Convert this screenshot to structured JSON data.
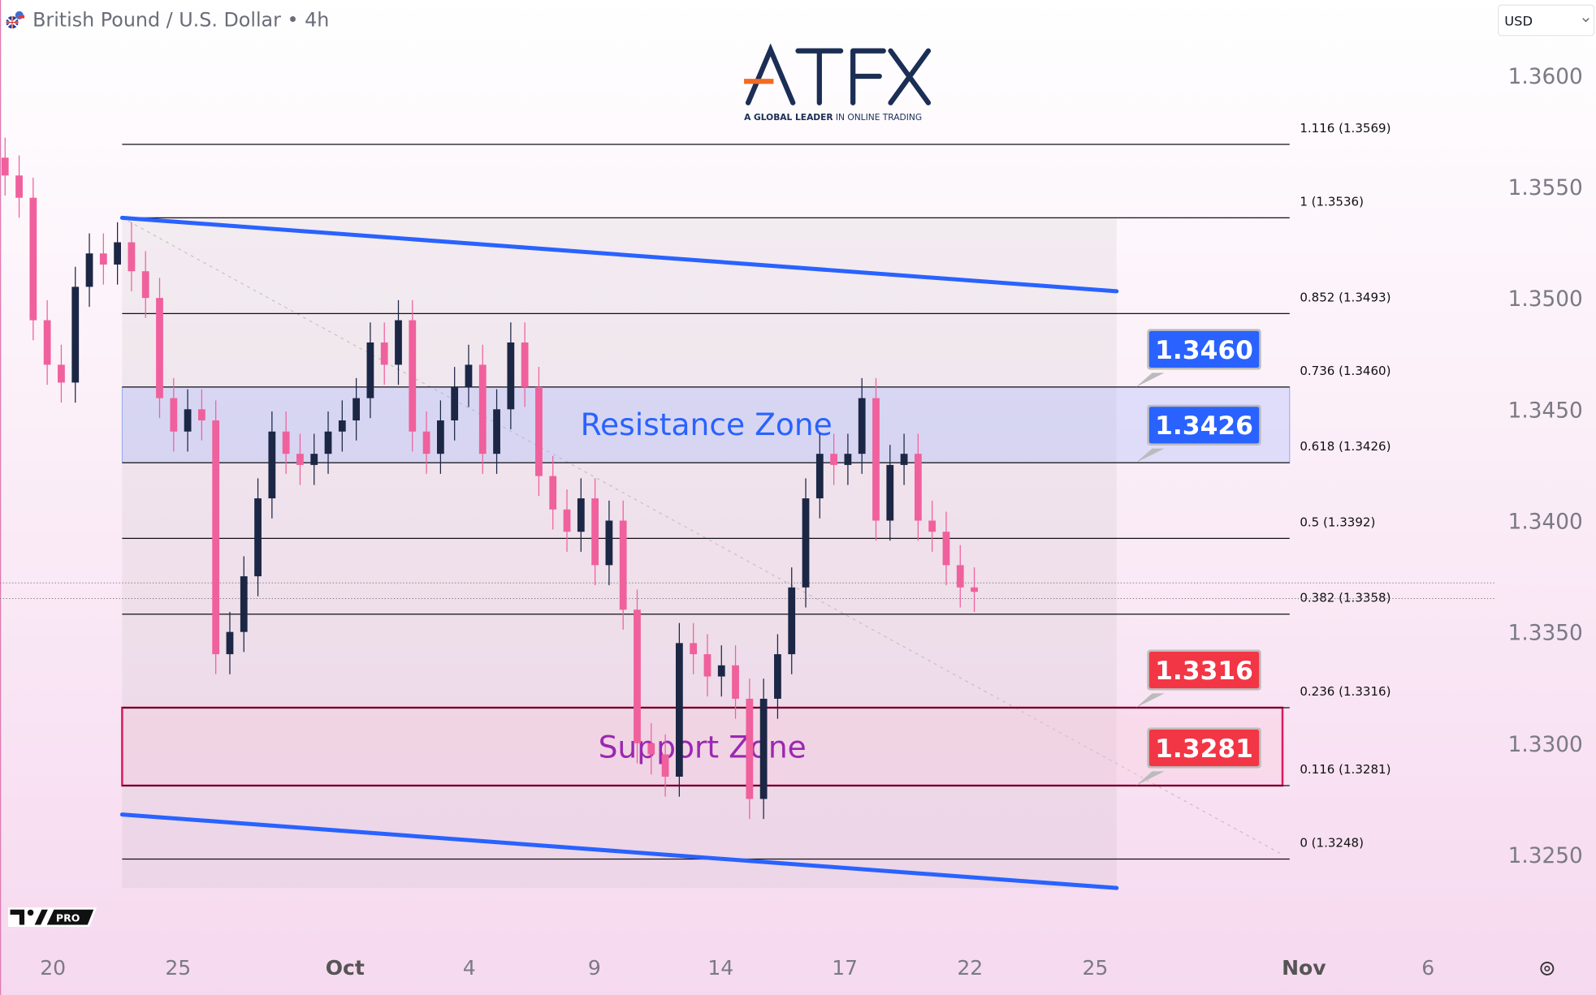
{
  "header": {
    "symbol_title": "British Pound / U.S. Dollar",
    "interval": "4h",
    "currency_select": "USD"
  },
  "logo": {
    "brand": "ATFX",
    "tagline_bold": "A GLOBAL LEADER",
    "tagline_rest": "IN ONLINE TRADING"
  },
  "watermark": {
    "badge": "PRO"
  },
  "colors": {
    "up_candle": "#1b2745",
    "down_candle": "#f0609c",
    "channel": "#2962ff",
    "resistance_tag": "#2962ff",
    "support_tag": "#f23645",
    "support_border": "#d81b60",
    "support_text": "#9c27b0",
    "resistance_text": "#2962ff"
  },
  "chart_data": {
    "type": "candlestick",
    "title": "British Pound / U.S. Dollar · 4h",
    "ylim": [
      1.3225,
      1.3615
    ],
    "y_ticks": [
      "1.3600",
      "1.3550",
      "1.3500",
      "1.3450",
      "1.3400",
      "1.3350",
      "1.3300",
      "1.3250"
    ],
    "x_ticks": [
      "20",
      "25",
      "Oct",
      "4",
      "9",
      "14",
      "17",
      "22",
      "25",
      "Nov",
      "6"
    ],
    "closes": [
      1.3555,
      1.3545,
      1.349,
      1.347,
      1.3462,
      1.3505,
      1.352,
      1.3515,
      1.3525,
      1.3512,
      1.35,
      1.3455,
      1.344,
      1.345,
      1.3445,
      1.334,
      1.335,
      1.3375,
      1.341,
      1.344,
      1.343,
      1.3425,
      1.343,
      1.344,
      1.3445,
      1.3455,
      1.348,
      1.347,
      1.349,
      1.344,
      1.343,
      1.3445,
      1.346,
      1.347,
      1.343,
      1.345,
      1.348,
      1.346,
      1.342,
      1.3405,
      1.3395,
      1.341,
      1.338,
      1.34,
      1.336,
      1.33,
      1.3295,
      1.3285,
      1.3345,
      1.334,
      1.333,
      1.3335,
      1.332,
      1.3275,
      1.332,
      1.334,
      1.337,
      1.341,
      1.343,
      1.3425,
      1.343,
      1.3455,
      1.34,
      1.3425,
      1.343,
      1.34,
      1.3395,
      1.338,
      1.337,
      1.3368
    ],
    "last_price_lines": [
      1.3372,
      1.3365
    ],
    "fib_levels": [
      {
        "label": "1.116 (1.3569)",
        "price": 1.3569
      },
      {
        "label": "1 (1.3536)",
        "price": 1.3536
      },
      {
        "label": "0.852 (1.3493)",
        "price": 1.3493
      },
      {
        "label": "0.736 (1.3460)",
        "price": 1.346
      },
      {
        "label": "0.618 (1.3426)",
        "price": 1.3426
      },
      {
        "label": "0.5 (1.3392)",
        "price": 1.3392
      },
      {
        "label": "0.382 (1.3358)",
        "price": 1.3358
      },
      {
        "label": "0.236 (1.3316)",
        "price": 1.3316
      },
      {
        "label": "0.116 (1.3281)",
        "price": 1.3281
      },
      {
        "label": "0 (1.3248)",
        "price": 1.3248
      }
    ],
    "channel": {
      "upper": [
        1.3536,
        1.3503
      ],
      "lower": [
        1.3268,
        1.3235
      ]
    },
    "zones": [
      {
        "label": "Resistance Zone",
        "top": 1.346,
        "bottom": 1.3426
      },
      {
        "label": "Support Zone",
        "top": 1.3316,
        "bottom": 1.3281
      }
    ],
    "price_tags": [
      {
        "label": "1.3460",
        "price": 1.346,
        "kind": "resistance"
      },
      {
        "label": "1.3426",
        "price": 1.3426,
        "kind": "resistance"
      },
      {
        "label": "1.3316",
        "price": 1.3316,
        "kind": "support"
      },
      {
        "label": "1.3281",
        "price": 1.3281,
        "kind": "support"
      }
    ]
  }
}
